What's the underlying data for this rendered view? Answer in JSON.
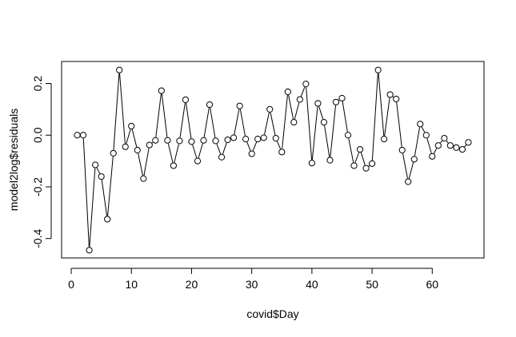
{
  "chart_data": {
    "type": "line",
    "title": "",
    "xlabel": "covid$Day",
    "ylabel": "model2log$residuals",
    "xlim": [
      -1.6,
      68.6
    ],
    "ylim": [
      -0.475,
      0.285
    ],
    "x_ticks": [
      0,
      10,
      20,
      30,
      40,
      50,
      60
    ],
    "x_tick_labels": [
      "0",
      "10",
      "20",
      "30",
      "40",
      "50",
      "60"
    ],
    "y_ticks": [
      -0.4,
      -0.2,
      0.0,
      0.2
    ],
    "y_tick_labels": [
      "-0.4",
      "-0.2",
      "0.0",
      "0.2"
    ],
    "grid": false,
    "legend": "none",
    "line_color": "#000000",
    "marker": "open-circle",
    "x": [
      1,
      2,
      3,
      4,
      5,
      6,
      7,
      8,
      9,
      10,
      11,
      12,
      13,
      14,
      15,
      16,
      17,
      18,
      19,
      20,
      21,
      22,
      23,
      24,
      25,
      26,
      27,
      28,
      29,
      30,
      31,
      32,
      33,
      34,
      35,
      36,
      37,
      38,
      39,
      40,
      41,
      42,
      43,
      44,
      45,
      46,
      47,
      48,
      49,
      50,
      51,
      52,
      53,
      54,
      55,
      56,
      57,
      58,
      59,
      60,
      61,
      62,
      63,
      64,
      65,
      66
    ],
    "values": [
      0.0,
      0.0,
      -0.445,
      -0.115,
      -0.16,
      -0.325,
      -0.07,
      0.252,
      -0.045,
      0.035,
      -0.058,
      -0.168,
      -0.038,
      -0.02,
      0.172,
      -0.02,
      -0.118,
      -0.022,
      0.137,
      -0.025,
      -0.1,
      -0.02,
      0.118,
      -0.022,
      -0.085,
      -0.018,
      -0.01,
      0.113,
      -0.015,
      -0.072,
      -0.015,
      -0.01,
      0.1,
      -0.012,
      -0.065,
      0.168,
      0.05,
      0.138,
      0.198,
      -0.108,
      0.123,
      0.05,
      -0.097,
      0.128,
      0.143,
      0.0,
      -0.118,
      -0.055,
      -0.128,
      -0.11,
      0.252,
      -0.015,
      0.157,
      0.14,
      -0.058,
      -0.18,
      -0.093,
      0.043,
      0.0,
      -0.082,
      -0.04,
      -0.012,
      -0.04,
      -0.048,
      -0.055,
      -0.028
    ]
  }
}
